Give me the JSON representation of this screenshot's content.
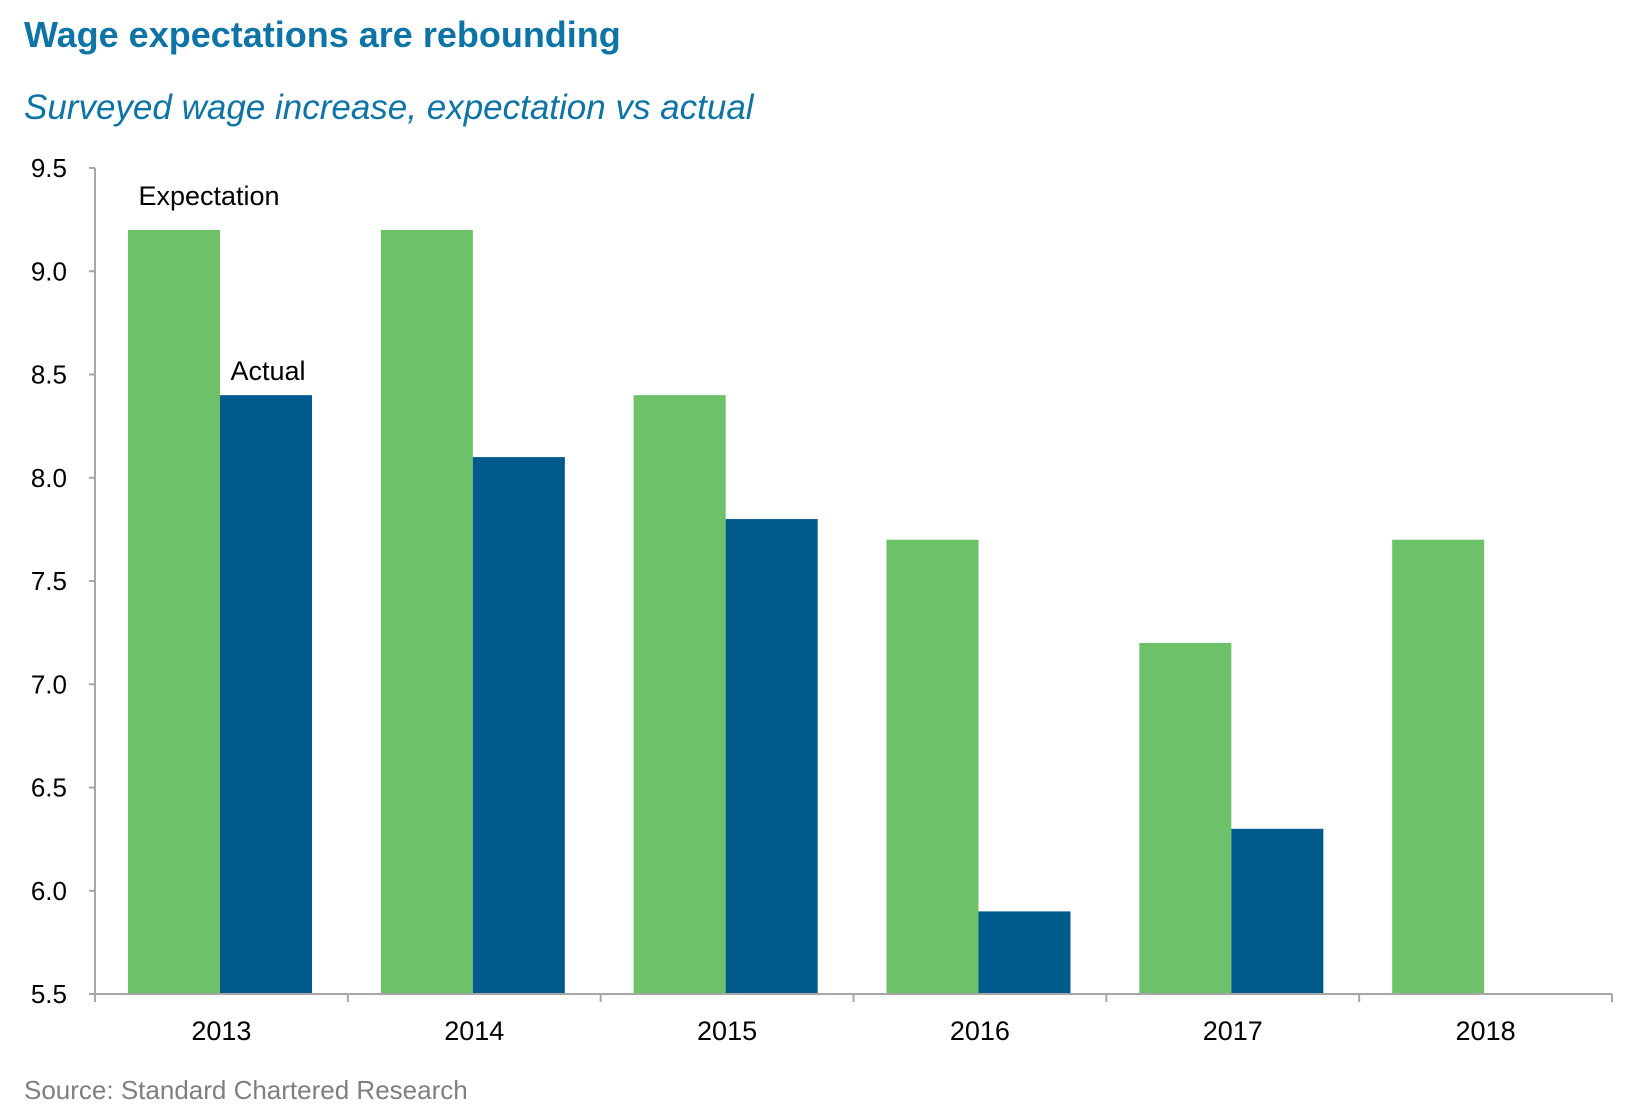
{
  "title": "Wage expectations are rebounding",
  "subtitle": "Surveyed wage increase, expectation vs actual",
  "source": "Source: Standard Chartered Research",
  "colors": {
    "title": "#0e74a6",
    "expectation": "#6cc169",
    "actual": "#005a8c",
    "axis": "#a6a6a6"
  },
  "chart_data": {
    "type": "bar",
    "categories": [
      "2013",
      "2014",
      "2015",
      "2016",
      "2017",
      "2018"
    ],
    "series": [
      {
        "name": "Expectation",
        "values": [
          9.2,
          9.2,
          8.4,
          7.7,
          7.2,
          7.7
        ]
      },
      {
        "name": "Actual",
        "values": [
          8.4,
          8.1,
          7.8,
          5.9,
          6.3,
          null
        ]
      }
    ],
    "ylim": [
      5.5,
      9.5
    ],
    "yticks": [
      "5.5",
      "6.0",
      "6.5",
      "7.0",
      "7.5",
      "8.0",
      "8.5",
      "9.0",
      "9.5"
    ],
    "grid": false,
    "legend": "inline labels above first bars"
  }
}
